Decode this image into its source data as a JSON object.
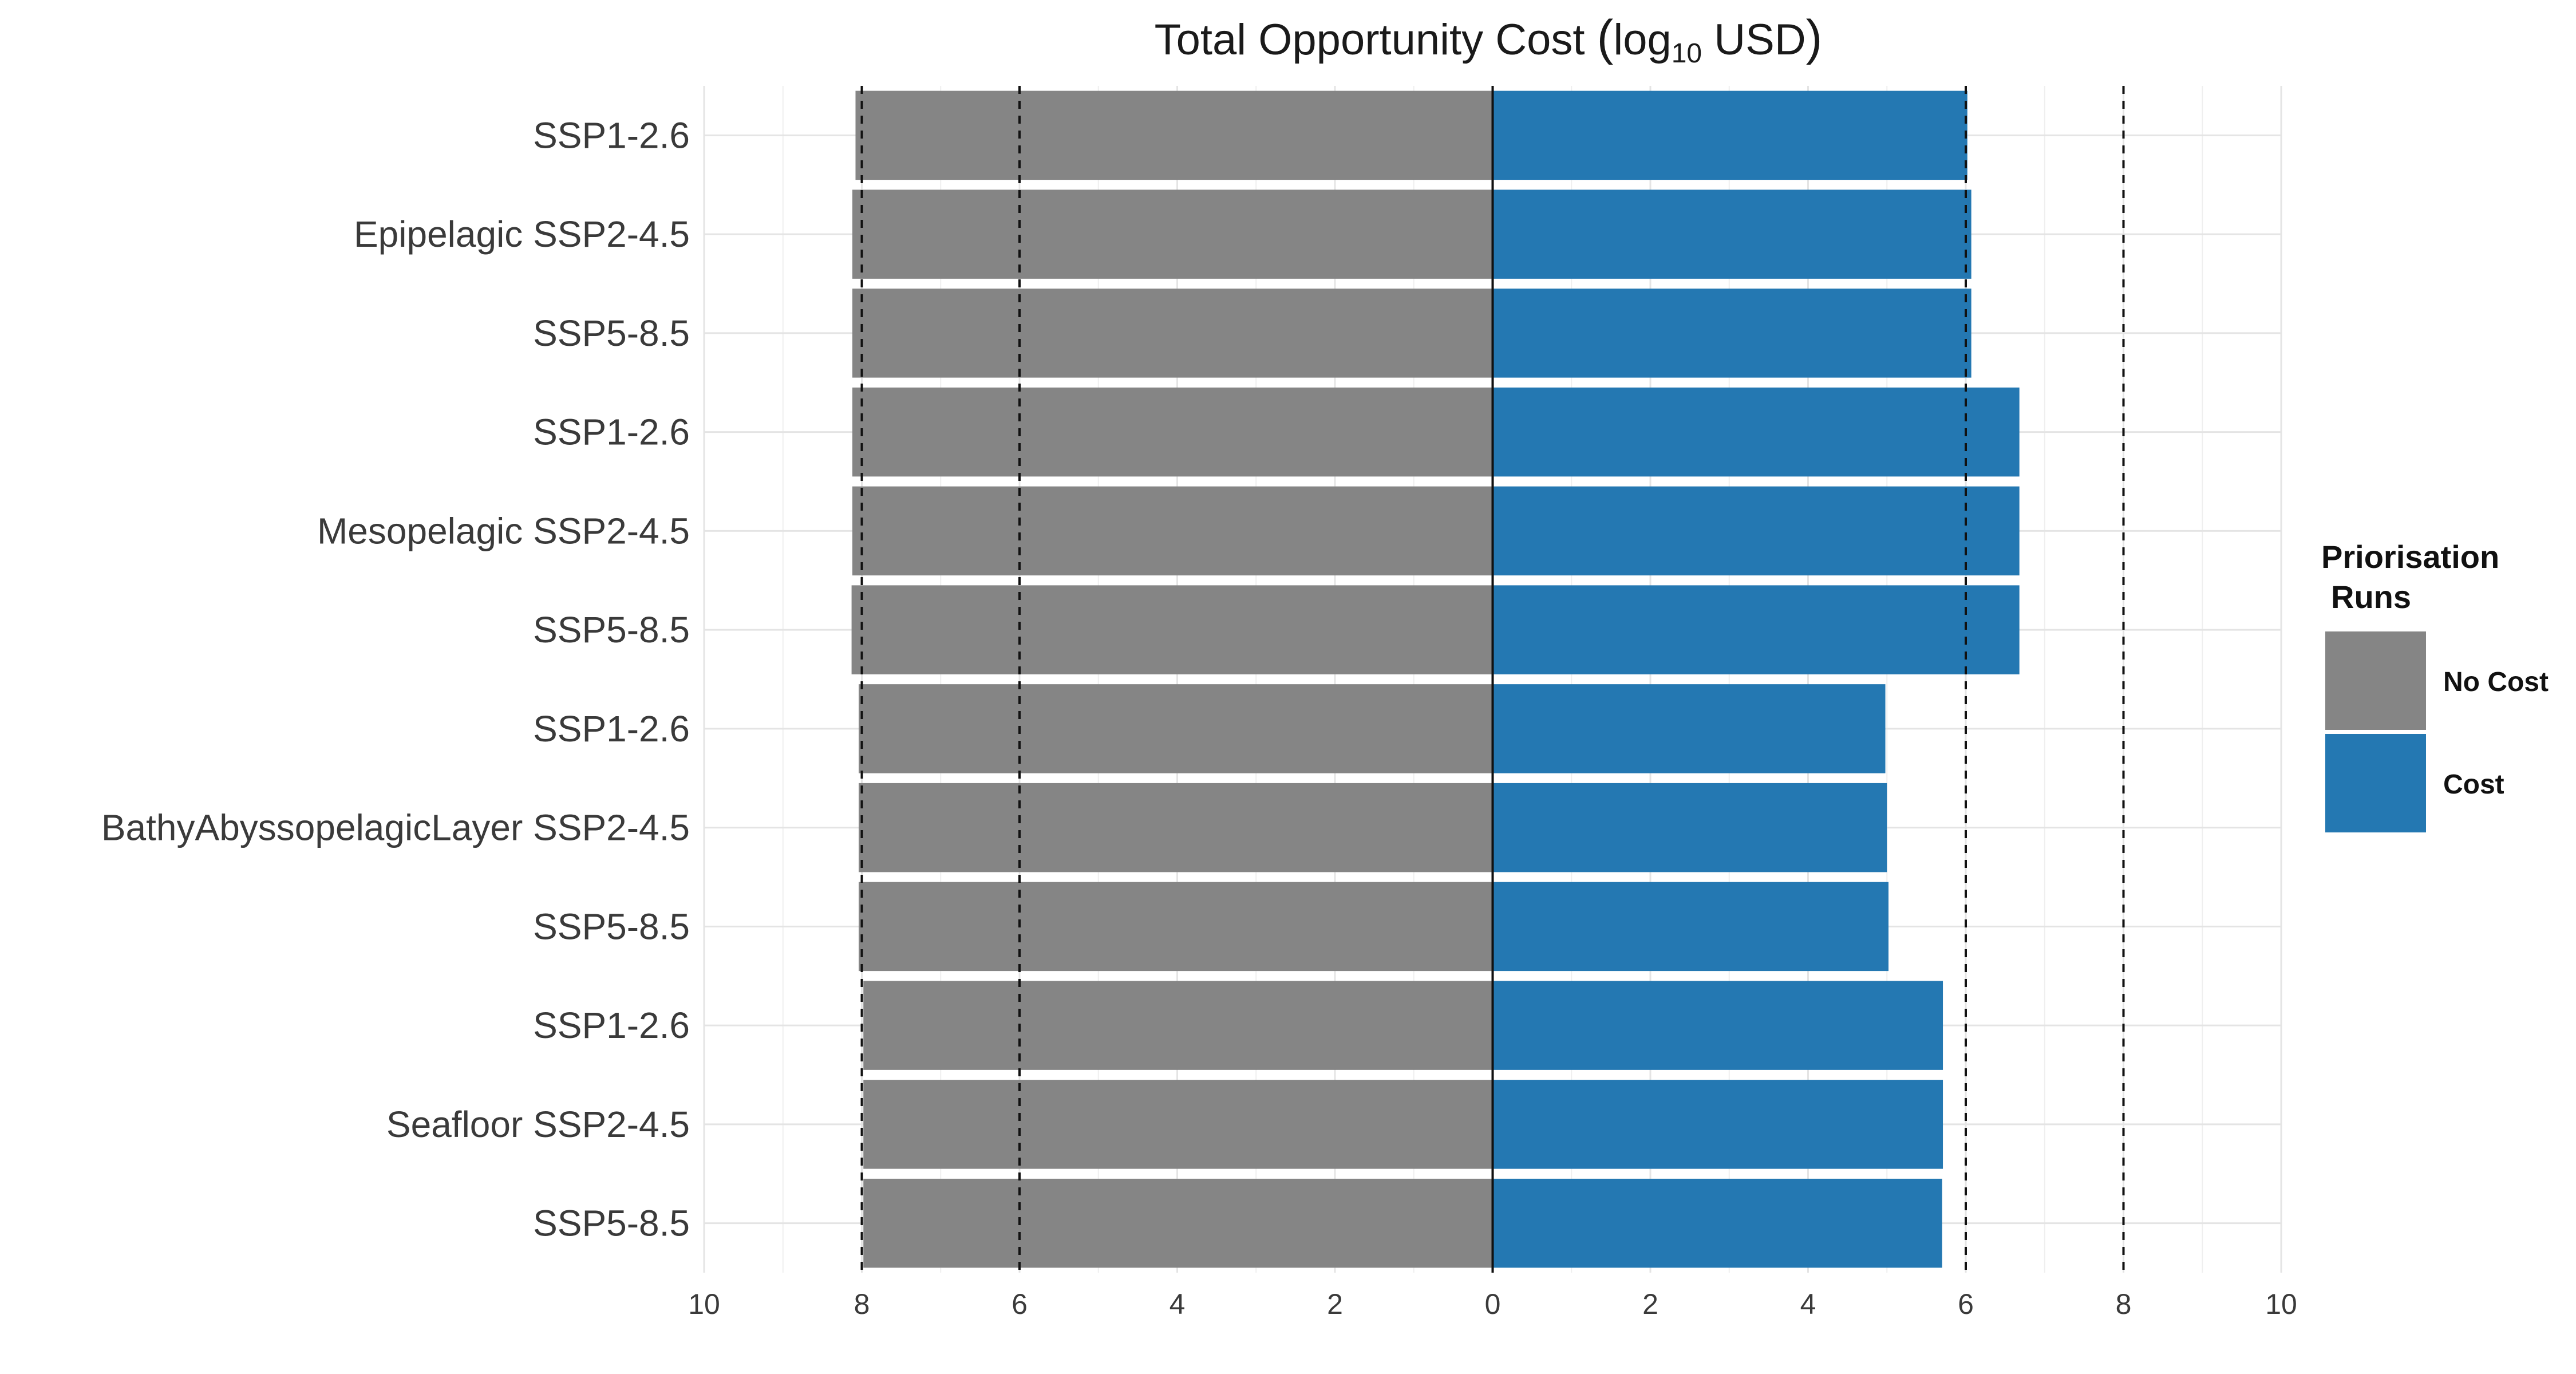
{
  "chart_data": {
    "type": "bar",
    "orientation": "horizontal-diverging",
    "title_main": "Total Opportunity Cost ",
    "title_log": "log",
    "title_sub": "10",
    "title_unit": " USD",
    "title_open": "(",
    "title_close": ")",
    "categories": [
      "SSP1-2.6",
      "Epipelagic SSP2-4.5",
      "SSP5-8.5",
      "SSP1-2.6",
      "Mesopelagic SSP2-4.5",
      "SSP5-8.5",
      "SSP1-2.6",
      "BathyAbyssopelagicLayer SSP2-4.5",
      "SSP5-8.5",
      "SSP1-2.6",
      "Seafloor SSP2-4.5",
      "SSP5-8.5"
    ],
    "series": [
      {
        "name": "No Cost",
        "side": "left",
        "color": "#858585",
        "values": [
          8.08,
          8.12,
          8.12,
          8.12,
          8.12,
          8.13,
          8.04,
          8.04,
          8.04,
          7.98,
          7.98,
          7.98
        ]
      },
      {
        "name": "Cost",
        "side": "right",
        "color": "#2478b2",
        "values": [
          6.02,
          6.07,
          6.07,
          6.68,
          6.68,
          6.68,
          4.98,
          5.0,
          5.02,
          5.71,
          5.71,
          5.7
        ]
      }
    ],
    "x_ticks": [
      10,
      8,
      6,
      4,
      2,
      0,
      2,
      4,
      6,
      8,
      10
    ],
    "xlim": [
      -10,
      10
    ],
    "reference_lines": [
      -8,
      -6,
      6,
      8
    ],
    "legend": {
      "title_line1": "Priorisation",
      "title_line2": "Runs",
      "items": [
        {
          "label": "No Cost",
          "color": "#858585"
        },
        {
          "label": "Cost",
          "color": "#2478b2"
        }
      ],
      "placement": "right"
    }
  }
}
